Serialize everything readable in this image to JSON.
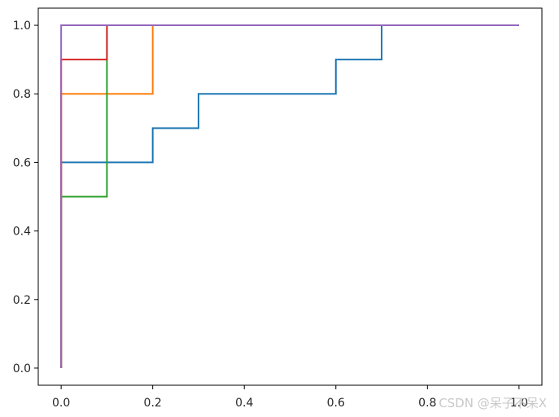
{
  "chart_data": {
    "type": "line",
    "title": "",
    "xlabel": "",
    "ylabel": "",
    "xlim": [
      -0.05,
      1.05
    ],
    "ylim": [
      -0.05,
      1.05
    ],
    "x_ticks": [
      0.0,
      0.2,
      0.4,
      0.6,
      0.8,
      1.0
    ],
    "y_ticks": [
      0.0,
      0.2,
      0.4,
      0.6,
      0.8,
      1.0
    ],
    "x_tick_labels": [
      "0.0",
      "0.2",
      "0.4",
      "0.6",
      "0.8",
      "1.0"
    ],
    "y_tick_labels": [
      "0.0",
      "0.2",
      "0.4",
      "0.6",
      "0.8",
      "1.0"
    ],
    "grid": false,
    "legend": "none",
    "line_style": "step",
    "series": [
      {
        "color": "#1f77b4",
        "x": [
          0.0,
          0.0,
          0.2,
          0.2,
          0.3,
          0.3,
          0.6,
          0.6,
          0.7,
          0.7,
          1.0
        ],
        "y": [
          0.0,
          0.6,
          0.6,
          0.7,
          0.7,
          0.8,
          0.8,
          0.9,
          0.9,
          1.0,
          1.0
        ]
      },
      {
        "color": "#ff7f0e",
        "x": [
          0.0,
          0.0,
          0.2,
          0.2,
          1.0
        ],
        "y": [
          0.0,
          0.8,
          0.8,
          1.0,
          1.0
        ]
      },
      {
        "color": "#2ca02c",
        "x": [
          0.0,
          0.0,
          0.1,
          0.1,
          1.0
        ],
        "y": [
          0.0,
          0.5,
          0.5,
          1.0,
          1.0
        ]
      },
      {
        "color": "#d62728",
        "x": [
          0.0,
          0.0,
          0.1,
          0.1,
          1.0
        ],
        "y": [
          0.0,
          0.9,
          0.9,
          1.0,
          1.0
        ]
      },
      {
        "color": "#9467bd",
        "x": [
          0.0,
          0.0,
          1.0
        ],
        "y": [
          0.0,
          1.0,
          1.0
        ]
      }
    ]
  },
  "watermark": "CSDN @呆子不呆X"
}
